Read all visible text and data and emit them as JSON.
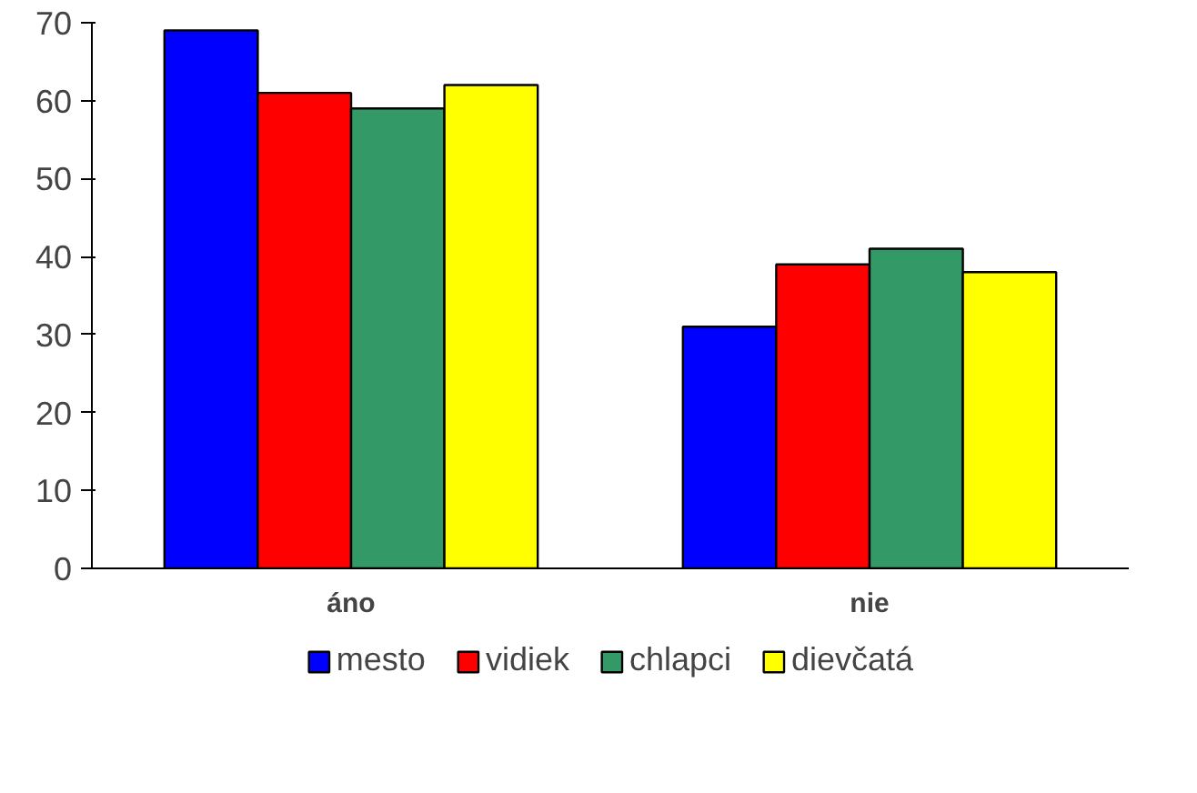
{
  "chart_data": {
    "type": "bar",
    "categories": [
      "áno",
      "nie"
    ],
    "series": [
      {
        "name": "mesto",
        "color": "#0000ff",
        "values": [
          69,
          31
        ]
      },
      {
        "name": "vidiek",
        "color": "#ff0000",
        "values": [
          61,
          39
        ]
      },
      {
        "name": "chlapci",
        "color": "#339966",
        "values": [
          59,
          41
        ]
      },
      {
        "name": "dievčatá",
        "color": "#ffff00",
        "values": [
          62,
          38
        ]
      }
    ],
    "ylim": [
      0,
      70
    ],
    "yticks": [
      0,
      10,
      20,
      30,
      40,
      50,
      60,
      70
    ],
    "grid": false,
    "legend": "bottom"
  }
}
